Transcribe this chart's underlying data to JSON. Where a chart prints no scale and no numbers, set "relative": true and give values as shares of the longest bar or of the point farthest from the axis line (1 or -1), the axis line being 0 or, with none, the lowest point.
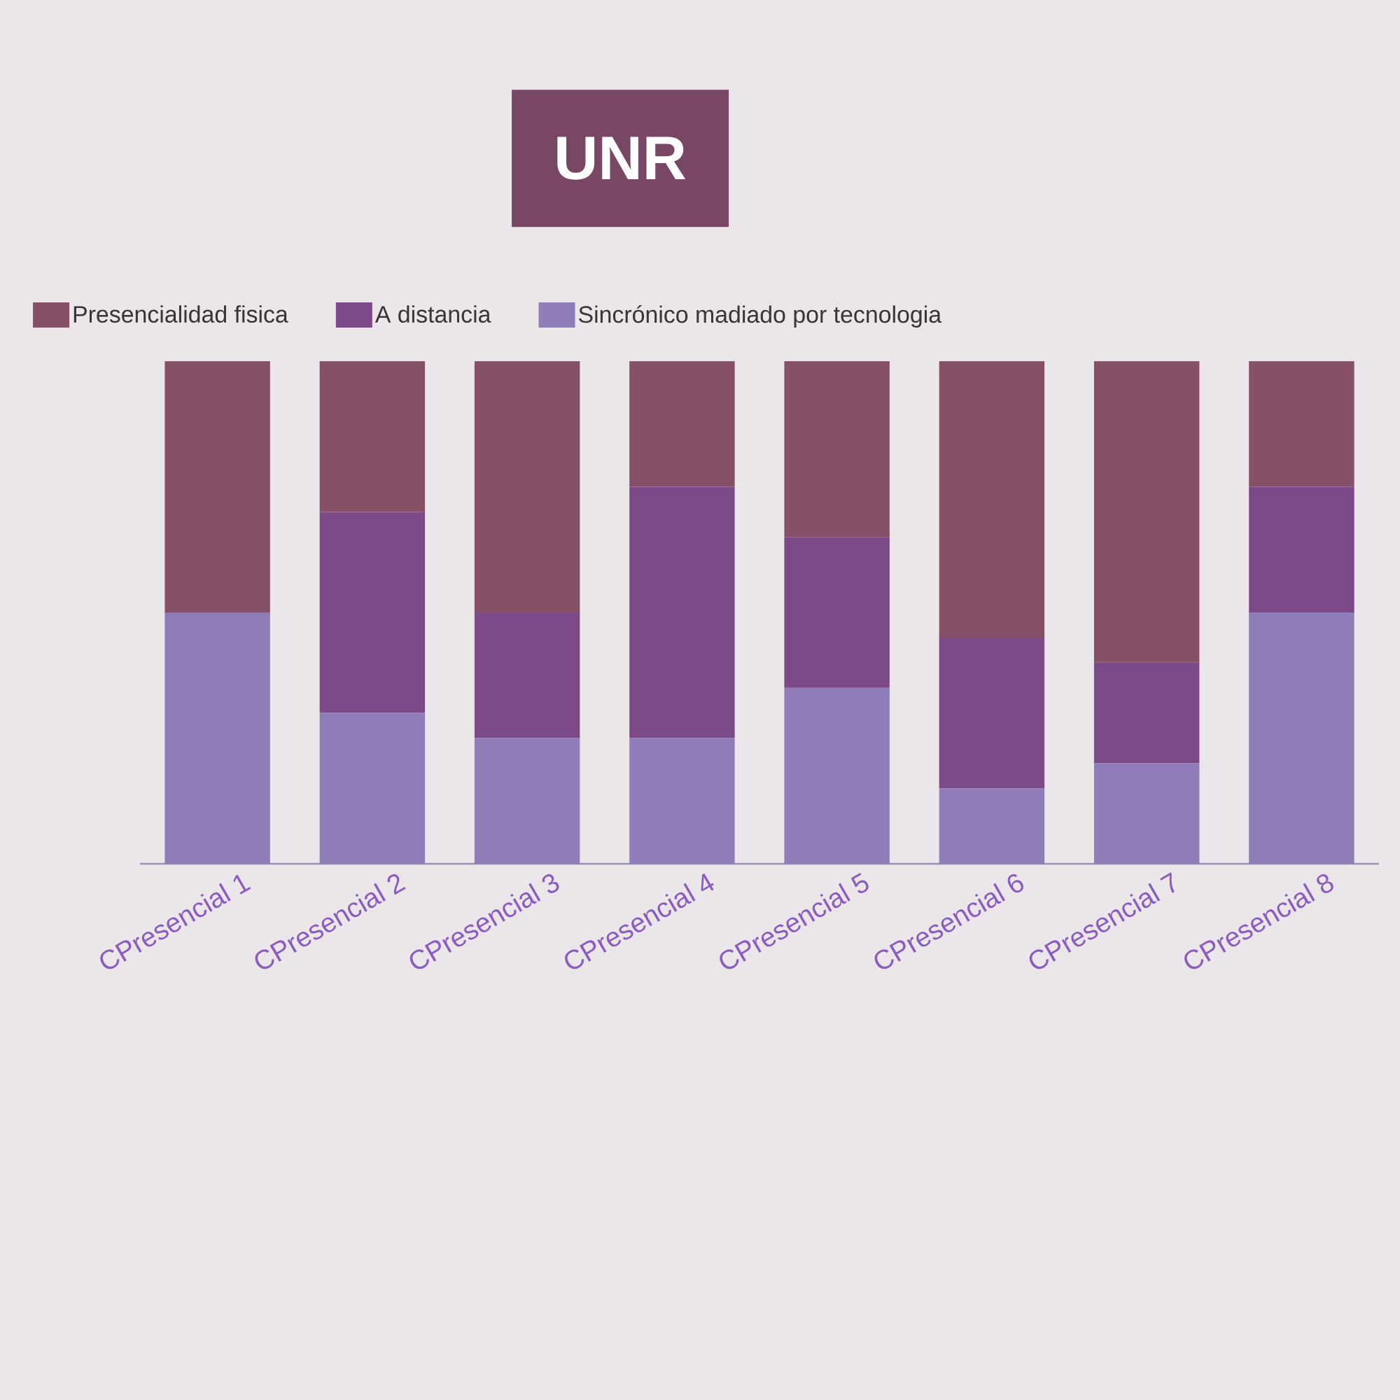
{
  "chart_data": {
    "type": "bar",
    "title": "UNR",
    "categories": [
      "CPresencial 1",
      "CPresencial 2",
      "CPresencial 3",
      "CPresencial 4",
      "CPresencial 5",
      "CPresencial 6",
      "CPresencial 7",
      "CPresencial 8"
    ],
    "stacked": true,
    "relative": true,
    "legend": "top",
    "series": [
      {
        "name": "Sincrónico madiado por tecnologia",
        "color": "#8e7db6",
        "values": [
          0.5,
          0.3,
          0.25,
          0.25,
          0.35,
          0.15,
          0.2,
          0.5
        ]
      },
      {
        "name": "A distancia",
        "color": "#7c4a86",
        "values": [
          0,
          0.4,
          0.25,
          0.5,
          0.3,
          0.3,
          0.2,
          0.25
        ]
      },
      {
        "name": "Presencialidad fisica",
        "color": "#855068",
        "values": [
          0.5,
          0.3,
          0.5,
          0.25,
          0.35,
          0.55,
          0.6,
          0.25
        ]
      }
    ]
  }
}
